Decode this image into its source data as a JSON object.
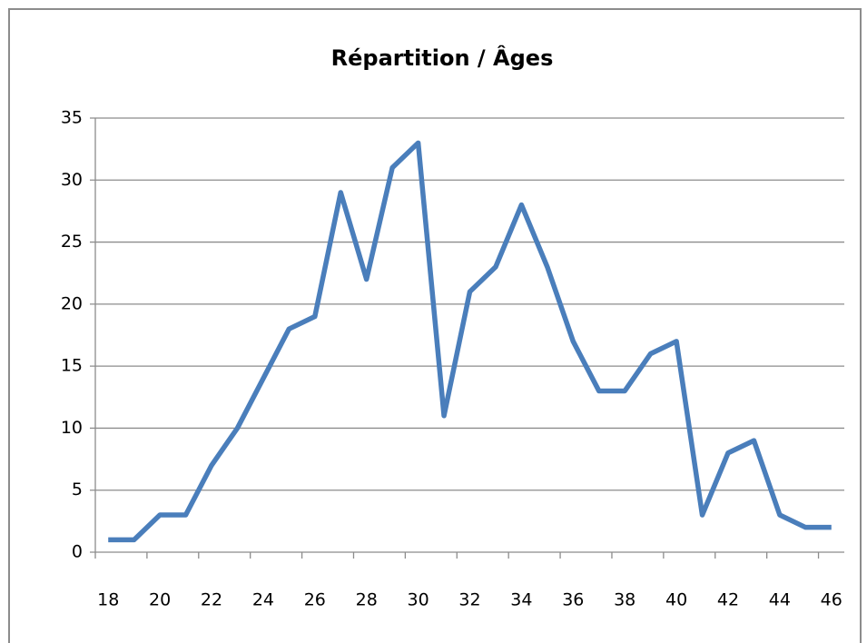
{
  "chart_data": {
    "type": "line",
    "title": "Répartition / Âges",
    "categories": [
      18,
      null,
      20,
      null,
      22,
      null,
      24,
      null,
      26,
      null,
      28,
      null,
      30,
      null,
      32,
      null,
      34,
      null,
      36,
      null,
      38,
      null,
      40,
      null,
      42,
      null,
      44,
      null,
      46
    ],
    "values": [
      1,
      1,
      3,
      3,
      7,
      10,
      14,
      18,
      19,
      29,
      22,
      31,
      33,
      11,
      21,
      23,
      28,
      23,
      17,
      13,
      13,
      16,
      17,
      3,
      8,
      9,
      3,
      2,
      2
    ],
    "color": "#4a7ebb",
    "ylim": [
      0,
      35
    ],
    "yticks": [
      0,
      5,
      10,
      15,
      20,
      25,
      30,
      35
    ],
    "grid": true
  }
}
